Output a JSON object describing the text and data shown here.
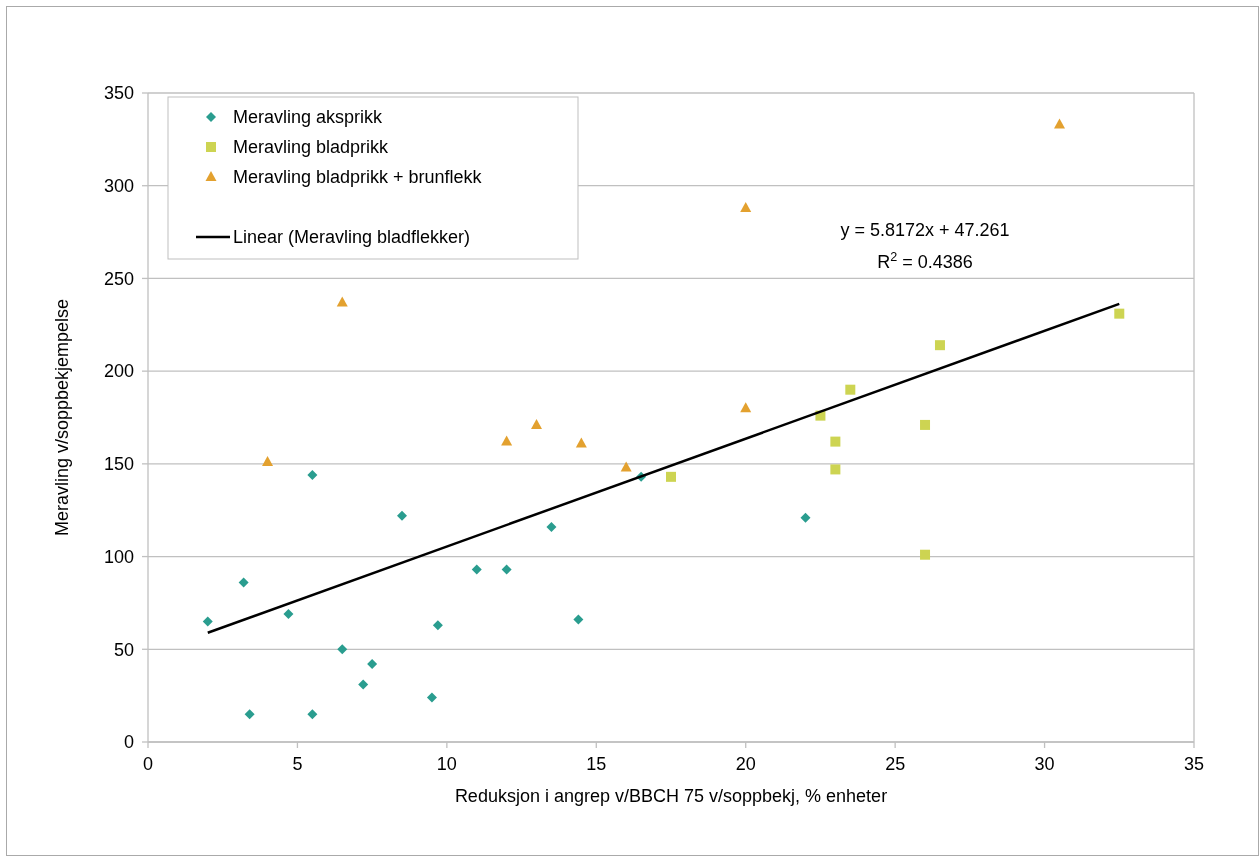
{
  "chart_data": {
    "type": "scatter",
    "xlabel": "Reduksjon i angrep v/BBCH 75 v/soppbekj, % enheter",
    "ylabel": "Meravling v/soppbekjempelse",
    "xlim": [
      0,
      35
    ],
    "xticks": [
      0,
      5,
      10,
      15,
      20,
      25,
      30,
      35
    ],
    "ylim": [
      0,
      350
    ],
    "yticks": [
      0,
      50,
      100,
      150,
      200,
      250,
      300,
      350
    ],
    "grid": "y",
    "legend": "top left",
    "series": [
      {
        "name": "Meravling aksprikk",
        "color": "#2a9d8f",
        "marker": "diamond",
        "x": [
          2,
          3.2,
          3.4,
          4.7,
          5.5,
          5.5,
          6.5,
          7.2,
          7.5,
          8.5,
          9.5,
          9.7,
          11,
          12,
          13.5,
          14.4,
          16.5,
          22
        ],
        "values": [
          65,
          86,
          15,
          69,
          144,
          15,
          50,
          31,
          42,
          122,
          24,
          63,
          93,
          93,
          116,
          66,
          143,
          121
        ]
      },
      {
        "name": "Meravling bladprikk",
        "color": "#cdd452",
        "marker": "square",
        "x": [
          17.5,
          22.5,
          23,
          23,
          23.5,
          26,
          26,
          26.5,
          32.5
        ],
        "values": [
          143,
          176,
          162,
          147,
          190,
          171,
          101,
          214,
          231
        ]
      },
      {
        "name": "Meravling bladprikk + brunflekk",
        "color": "#e3a12f",
        "marker": "triangle",
        "x": [
          4,
          6.5,
          12,
          13,
          14.5,
          16,
          20,
          20,
          30.5
        ],
        "values": [
          151,
          237,
          162,
          171,
          161,
          148,
          180,
          288,
          333
        ]
      },
      {
        "name": "Linear (Meravling bladflekker)",
        "color": "#000000",
        "type": "line",
        "marker": "none",
        "x": [
          2,
          32.5
        ],
        "values": [
          58.9,
          236.3
        ]
      }
    ],
    "annotations": [
      "y = 5.8172x + 47.261",
      "R$^{2}$ = 0.4386"
    ]
  }
}
